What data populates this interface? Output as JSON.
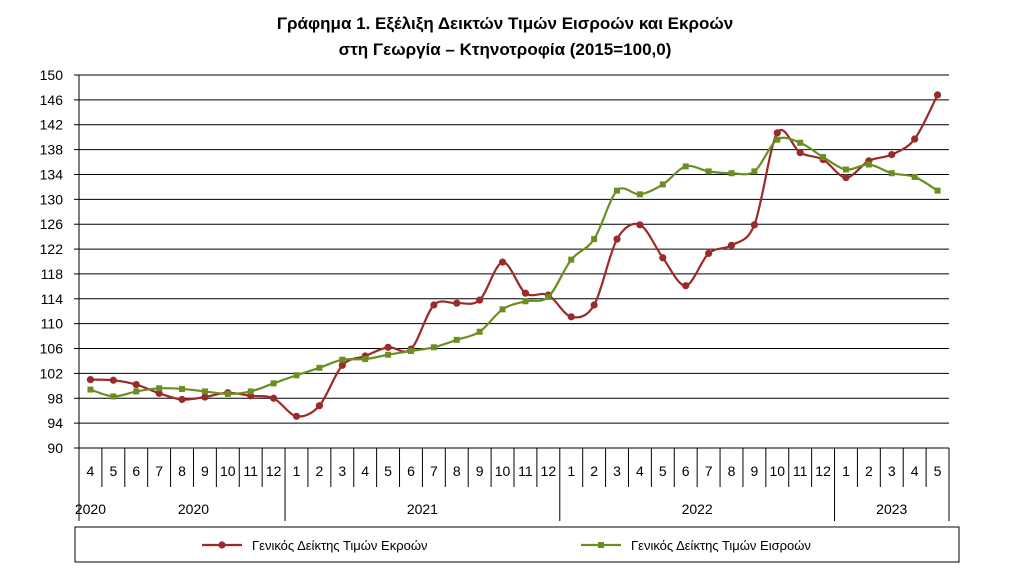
{
  "chart_data": {
    "type": "line",
    "title_line1": "Γράφημα 1. Εξέλιξη Δεικτών Τιμών Εισροών και Εκροών",
    "title_line2": "στη Γεωργία – Κτηνοτροφία (2015=100,0)",
    "ylim": [
      90,
      150
    ],
    "y_ticks": [
      "90",
      "94",
      "98",
      "102",
      "106",
      "110",
      "114",
      "118",
      "122",
      "126",
      "130",
      "134",
      "138",
      "142",
      "146",
      "150"
    ],
    "y_tick_values": [
      90,
      94,
      98,
      102,
      106,
      110,
      114,
      118,
      122,
      126,
      130,
      134,
      138,
      142,
      146,
      150
    ],
    "categories": [
      "4",
      "5",
      "6",
      "7",
      "8",
      "9",
      "10",
      "11",
      "12",
      "1",
      "2",
      "3",
      "4",
      "5",
      "6",
      "7",
      "8",
      "9",
      "10",
      "11",
      "12",
      "1",
      "2",
      "3",
      "4",
      "5",
      "6",
      "7",
      "8",
      "9",
      "10",
      "11",
      "12",
      "1",
      "2",
      "3",
      "4",
      "5"
    ],
    "year_groups": [
      {
        "label": "2020",
        "start": 0,
        "end": 0
      },
      {
        "label": "2020",
        "start": 1,
        "end": 8
      },
      {
        "label": "2021",
        "start": 9,
        "end": 20
      },
      {
        "label": "2022",
        "start": 21,
        "end": 32
      },
      {
        "label": "2023",
        "start": 33,
        "end": 37
      }
    ],
    "grid": true,
    "legend_position": "bottom",
    "series": [
      {
        "name": "Γενικός Δείκτης Τιμών Εκροών",
        "color": "#9b2a2a",
        "marker": "circle",
        "values": [
          101.0,
          100.9,
          100.2,
          98.8,
          97.8,
          98.2,
          98.9,
          98.4,
          98.0,
          95.1,
          96.8,
          103.3,
          104.8,
          106.2,
          105.9,
          113.0,
          113.3,
          113.8,
          119.9,
          114.9,
          114.6,
          111.1,
          113.0,
          123.6,
          125.9,
          120.6,
          116.1,
          121.3,
          122.6,
          125.9,
          140.7,
          137.5,
          136.4,
          133.5,
          136.2,
          137.2,
          139.7,
          146.8
        ]
      },
      {
        "name": "Γενικός Δείκτης Τιμών Εισροών",
        "color": "#6b8e23",
        "marker": "square",
        "values": [
          99.4,
          98.3,
          99.1,
          99.6,
          99.5,
          99.1,
          98.7,
          99.1,
          100.4,
          101.7,
          102.9,
          104.2,
          104.3,
          105.0,
          105.6,
          106.2,
          107.4,
          108.7,
          112.3,
          113.6,
          114.3,
          120.3,
          123.6,
          131.4,
          130.8,
          132.4,
          135.3,
          134.5,
          134.2,
          134.5,
          139.6,
          139.1,
          136.8,
          134.8,
          135.6,
          134.2,
          133.6,
          131.4
        ]
      }
    ]
  }
}
